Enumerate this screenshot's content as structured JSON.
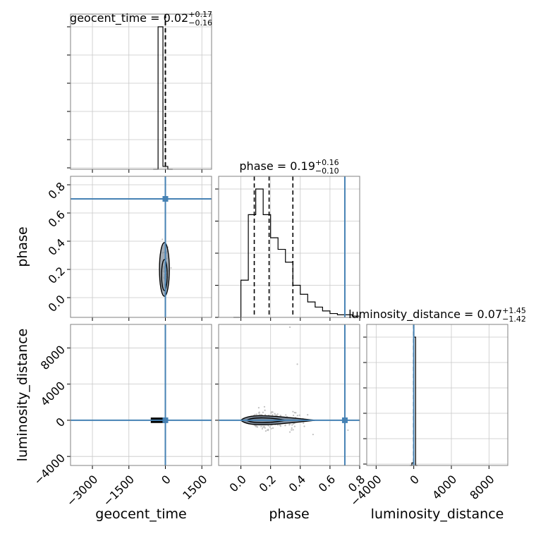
{
  "chart_data": {
    "type": "corner",
    "parameters": [
      "geocent_time",
      "phase",
      "luminosity_distance"
    ],
    "truths": {
      "geocent_time": 0,
      "phase": 0.7,
      "luminosity_distance": 0
    },
    "panels": {
      "geocent_time_hist": {
        "title": {
          "name": "geocent_time",
          "value": "0.02",
          "upper": "+0.17",
          "lower": "−0.16"
        },
        "xlim": [
          -3900,
          1900
        ],
        "bins": [
          -500,
          -300,
          -100,
          100,
          300
        ],
        "counts": [
          0,
          1.0,
          0.02,
          0
        ],
        "quantiles": [
          -0.14,
          0.02,
          0.19
        ]
      },
      "phase_hist": {
        "title": {
          "name": "phase",
          "value": "0.19",
          "upper": "+0.16",
          "lower": "−0.10"
        },
        "xlim": [
          -0.15,
          0.8
        ],
        "bins": [
          -0.05,
          0.0,
          0.05,
          0.1,
          0.15,
          0.2,
          0.25,
          0.3,
          0.35,
          0.4,
          0.45,
          0.5,
          0.55,
          0.6,
          0.65,
          0.7,
          0.75,
          0.8
        ],
        "counts": [
          0.0,
          0.29,
          0.8,
          1.0,
          0.8,
          0.62,
          0.53,
          0.43,
          0.25,
          0.18,
          0.12,
          0.08,
          0.05,
          0.03,
          0.02,
          0.02,
          0.01
        ],
        "quantiles": [
          0.09,
          0.19,
          0.35
        ]
      },
      "luminosity_distance_hist": {
        "title": {
          "name": "luminosity_distance",
          "value": "0.07",
          "upper": "+1.45",
          "lower": "−1.42"
        },
        "xlim": [
          -5000,
          10000
        ],
        "bins": [
          -400,
          -200,
          0,
          200,
          400
        ],
        "counts": [
          0.0,
          0.02,
          1.0,
          0.0
        ],
        "quantiles": [
          -1.35,
          0.07,
          1.52
        ]
      }
    },
    "axes": {
      "geocent_time": {
        "label": "geocent_time",
        "lim": [
          -3900,
          1900
        ],
        "ticks": [
          -3000,
          -1500,
          0,
          1500
        ],
        "tick_labels": [
          "−3000",
          "−1500",
          "0",
          "1500"
        ]
      },
      "phase": {
        "label": "phase",
        "lim": [
          -0.15,
          0.8
        ],
        "ticks": [
          0.0,
          0.2,
          0.4,
          0.6,
          0.8
        ],
        "tick_labels": [
          "0.0",
          "0.2",
          "0.4",
          "0.6",
          "0.8"
        ]
      },
      "phase_y": {
        "label": "phase",
        "lim": [
          -0.14,
          0.86
        ],
        "ticks": [
          0.0,
          0.2,
          0.4,
          0.6,
          0.8
        ],
        "tick_labels": [
          "0.0",
          "0.2",
          "0.4",
          "0.6",
          "0.8"
        ]
      },
      "luminosity_distance_y": {
        "label": "luminosity_distance",
        "lim": [
          -5000,
          10600
        ],
        "ticks": [
          -4000,
          0,
          4000,
          8000
        ],
        "tick_labels": [
          "−4000",
          "0",
          "4000",
          "8000"
        ]
      },
      "luminosity_distance_x": {
        "label": "luminosity_distance",
        "lim": [
          -5000,
          10000
        ],
        "ticks": [
          -4000,
          0,
          4000,
          8000
        ],
        "tick_labels": [
          "−4000",
          "0",
          "4000",
          "8000"
        ]
      }
    },
    "grid": true,
    "colors": {
      "truth": "#4682b4",
      "hist": "#000000",
      "samples": "#b0b0b0"
    }
  }
}
